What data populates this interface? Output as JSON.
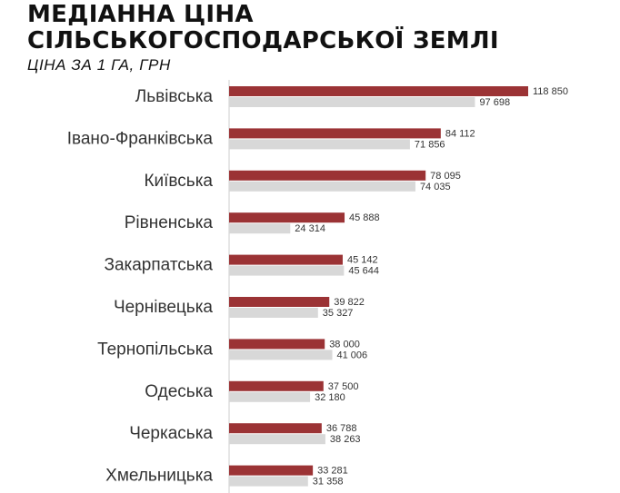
{
  "title_line1": "МЕДІАННА ЦІНА",
  "title_line2": "СІЛЬСЬКОГОСПОДАРСЬКОЇ ЗЕМЛІ",
  "subtitle": "ЦІНА ЗА 1 ГА, ГРН",
  "colors": {
    "series_a": "#9b3335",
    "series_b": "#d8d8d8",
    "axis": "#cccccc"
  },
  "chart_data": {
    "type": "bar",
    "orientation": "horizontal",
    "title": "МЕДІАННА ЦІНА СІЛЬСЬКОГОСПОДАРСЬКОЇ ЗЕМЛІ",
    "subtitle": "ЦІНА ЗА 1 ГА, ГРН",
    "categories": [
      "Львівська",
      "Івано-Франківська",
      "Київська",
      "Рівненська",
      "Закарпатська",
      "Чернівецька",
      "Тернопільська",
      "Одеська",
      "Черкаська",
      "Хмельницька"
    ],
    "series": [
      {
        "values": [
          118850,
          84112,
          78095,
          45888,
          45142,
          39822,
          38000,
          37500,
          36788,
          33281
        ],
        "labels": [
          "118 850",
          "84 112",
          "78 095",
          "45 888",
          "45 142",
          "39 822",
          "38 000",
          "37 500",
          "36 788",
          "33 281"
        ]
      },
      {
        "values": [
          97698,
          71856,
          74035,
          24314,
          45644,
          35327,
          41006,
          32180,
          38263,
          31358
        ],
        "labels": [
          "97 698",
          "71 856",
          "74 035",
          "24 314",
          "45 644",
          "35 327",
          "41 006",
          "32 180",
          "38 263",
          "31 358"
        ]
      }
    ],
    "xlim": [
      0,
      118850
    ],
    "grid": false,
    "legend": "none"
  }
}
